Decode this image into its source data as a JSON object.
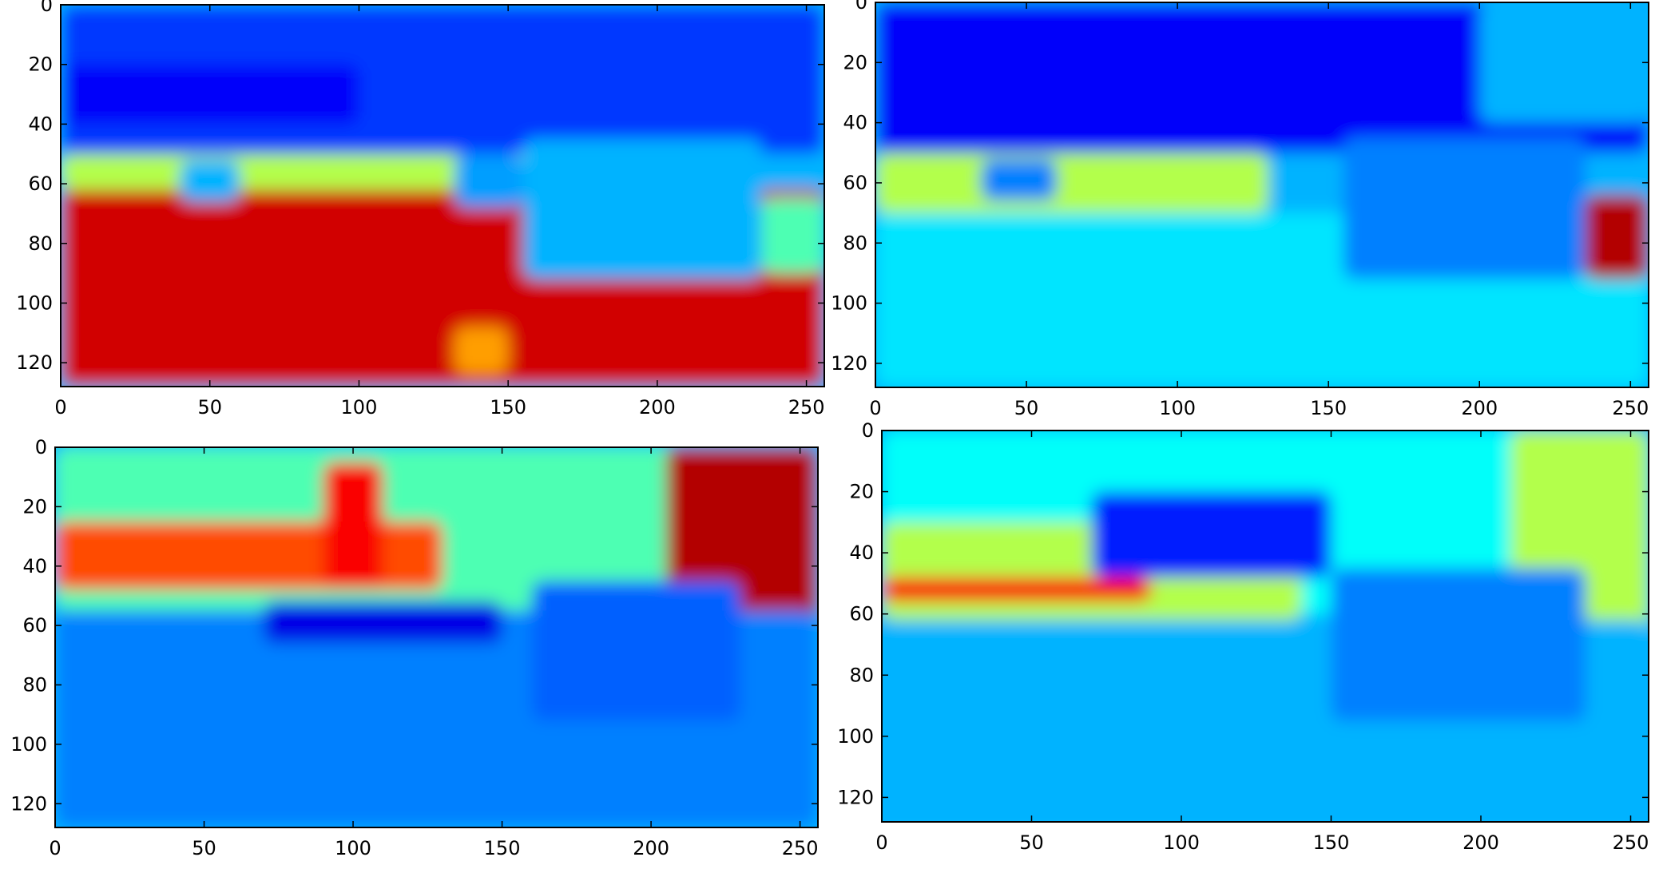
{
  "chart_data": [
    {
      "type": "heatmap",
      "panel": "top-left",
      "colormap": "jet",
      "xlim": [
        0,
        256
      ],
      "ylim": [
        128,
        0
      ],
      "x_ticks": [
        0,
        50,
        100,
        150,
        200,
        250
      ],
      "y_ticks": [
        0,
        20,
        40,
        60,
        80,
        100,
        120
      ],
      "regions": [
        {
          "level": 0.18,
          "x": [
            0,
            256
          ],
          "y": [
            0,
            50
          ]
        },
        {
          "level": 0.12,
          "x": [
            0,
            100
          ],
          "y": [
            20,
            40
          ]
        },
        {
          "level": 0.55,
          "x": [
            0,
            160
          ],
          "y": [
            50,
            62
          ]
        },
        {
          "level": 0.92,
          "x": [
            0,
            256
          ],
          "y": [
            62,
            128
          ]
        },
        {
          "level": 0.3,
          "x": [
            40,
            60
          ],
          "y": [
            52,
            66
          ]
        },
        {
          "level": 0.28,
          "x": [
            132,
            155
          ],
          "y": [
            50,
            68
          ]
        },
        {
          "level": 0.3,
          "x": [
            155,
            235
          ],
          "y": [
            45,
            92
          ]
        },
        {
          "level": 0.45,
          "x": [
            235,
            256
          ],
          "y": [
            65,
            90
          ]
        },
        {
          "level": 0.72,
          "x": [
            132,
            150
          ],
          "y": [
            108,
            124
          ]
        }
      ]
    },
    {
      "type": "heatmap",
      "panel": "top-right",
      "colormap": "jet",
      "xlim": [
        0,
        256
      ],
      "ylim": [
        128,
        0
      ],
      "x_ticks": [
        0,
        50,
        100,
        150,
        200,
        250
      ],
      "y_ticks": [
        0,
        20,
        40,
        60,
        80,
        100,
        120
      ],
      "regions": [
        {
          "level": 0.12,
          "x": [
            0,
            256
          ],
          "y": [
            0,
            50
          ]
        },
        {
          "level": 0.55,
          "x": [
            0,
            130
          ],
          "y": [
            50,
            70
          ]
        },
        {
          "level": 0.35,
          "x": [
            0,
            256
          ],
          "y": [
            70,
            128
          ]
        },
        {
          "level": 0.25,
          "x": [
            155,
            235
          ],
          "y": [
            45,
            92
          ]
        },
        {
          "level": 0.25,
          "x": [
            35,
            60
          ],
          "y": [
            52,
            66
          ]
        },
        {
          "level": 0.95,
          "x": [
            235,
            256
          ],
          "y": [
            64,
            92
          ]
        },
        {
          "level": 0.3,
          "x": [
            200,
            256
          ],
          "y": [
            0,
            40
          ]
        }
      ]
    },
    {
      "type": "heatmap",
      "panel": "bottom-left",
      "colormap": "jet",
      "xlim": [
        0,
        256
      ],
      "ylim": [
        128,
        0
      ],
      "x_ticks": [
        0,
        50,
        100,
        150,
        200,
        250
      ],
      "y_ticks": [
        0,
        20,
        40,
        60,
        80,
        100,
        120
      ],
      "regions": [
        {
          "level": 0.45,
          "x": [
            0,
            256
          ],
          "y": [
            0,
            55
          ]
        },
        {
          "level": 0.8,
          "x": [
            0,
            130
          ],
          "y": [
            25,
            48
          ]
        },
        {
          "level": 0.88,
          "x": [
            90,
            110
          ],
          "y": [
            5,
            48
          ]
        },
        {
          "level": 0.95,
          "x": [
            205,
            256
          ],
          "y": [
            0,
            65
          ]
        },
        {
          "level": 0.25,
          "x": [
            0,
            256
          ],
          "y": [
            55,
            128
          ]
        },
        {
          "level": 0.1,
          "x": [
            70,
            150
          ],
          "y": [
            52,
            66
          ]
        },
        {
          "level": 0.22,
          "x": [
            160,
            230
          ],
          "y": [
            45,
            92
          ]
        }
      ]
    },
    {
      "type": "heatmap",
      "panel": "bottom-right",
      "colormap": "jet",
      "xlim": [
        0,
        256
      ],
      "ylim": [
        128,
        0
      ],
      "x_ticks": [
        0,
        50,
        100,
        150,
        200,
        250
      ],
      "y_ticks": [
        0,
        20,
        40,
        60,
        80,
        100,
        120
      ],
      "regions": [
        {
          "level": 0.38,
          "x": [
            0,
            256
          ],
          "y": [
            0,
            60
          ]
        },
        {
          "level": 0.55,
          "x": [
            0,
            140
          ],
          "y": [
            30,
            62
          ]
        },
        {
          "level": 0.88,
          "x": [
            0,
            90
          ],
          "y": [
            48,
            56
          ]
        },
        {
          "level": 0.15,
          "x": [
            70,
            150
          ],
          "y": [
            20,
            48
          ]
        },
        {
          "level": 0.55,
          "x": [
            210,
            256
          ],
          "y": [
            0,
            70
          ]
        },
        {
          "level": 0.3,
          "x": [
            0,
            256
          ],
          "y": [
            62,
            128
          ]
        },
        {
          "level": 0.25,
          "x": [
            150,
            235
          ],
          "y": [
            45,
            95
          ]
        }
      ]
    }
  ]
}
